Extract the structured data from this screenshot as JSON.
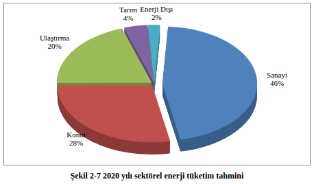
{
  "chart_data": {
    "type": "pie",
    "title": "Şekil 2-7 2020 yılı sektörel enerji tüketim tahmini",
    "categories": [
      "Sanayi",
      "Konut",
      "Ulaştırma",
      "Tarım",
      "Enerji Dışı"
    ],
    "values": [
      46,
      28,
      20,
      4,
      2
    ],
    "value_labels": [
      "46%",
      "28%",
      "20%",
      "4%",
      "2%"
    ],
    "colors": [
      "#4f81bd",
      "#c0504d",
      "#9bbb59",
      "#8064a2",
      "#4bacc6"
    ],
    "data_labels": true
  }
}
